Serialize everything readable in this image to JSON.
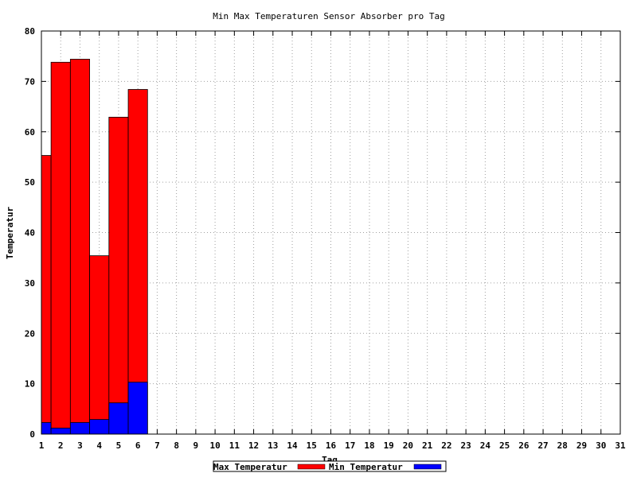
{
  "chart_data": {
    "type": "bar",
    "title": "Min Max Temperaturen Sensor Absorber pro Tag",
    "xlabel": "Tag",
    "ylabel": "Temperatur",
    "xlim": [
      1,
      31
    ],
    "ylim": [
      0,
      80
    ],
    "y_ticks": [
      0,
      10,
      20,
      30,
      40,
      50,
      60,
      70,
      80
    ],
    "x_ticks": [
      1,
      2,
      3,
      4,
      5,
      6,
      7,
      8,
      9,
      10,
      11,
      12,
      13,
      14,
      15,
      16,
      17,
      18,
      19,
      20,
      21,
      22,
      23,
      24,
      25,
      26,
      27,
      28,
      29,
      30,
      31
    ],
    "grid": true,
    "legend_placement": "bottom-center",
    "series": [
      {
        "name": "Max Temperatur",
        "color": "#ff0000",
        "points": [
          {
            "x": 1,
            "y": 55.3
          },
          {
            "x": 2,
            "y": 73.8
          },
          {
            "x": 3,
            "y": 74.4
          },
          {
            "x": 4,
            "y": 35.4
          },
          {
            "x": 5,
            "y": 62.9
          },
          {
            "x": 6,
            "y": 68.4
          }
        ]
      },
      {
        "name": "Min Temperatur",
        "color": "#0000ff",
        "points": [
          {
            "x": 1,
            "y": 2.3
          },
          {
            "x": 2,
            "y": 1.2
          },
          {
            "x": 3,
            "y": 2.3
          },
          {
            "x": 4,
            "y": 2.9
          },
          {
            "x": 5,
            "y": 6.2
          },
          {
            "x": 6,
            "y": 10.3
          }
        ]
      }
    ]
  }
}
